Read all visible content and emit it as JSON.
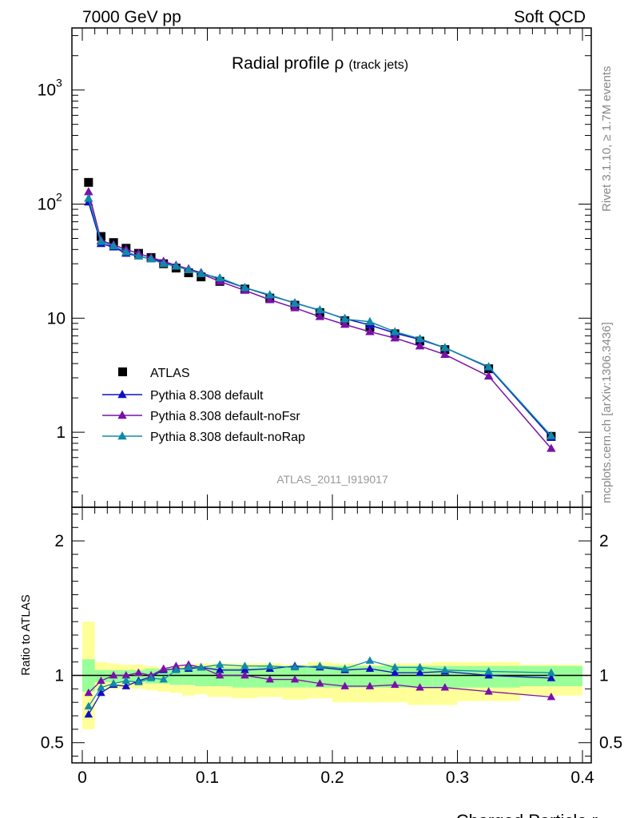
{
  "header": {
    "left": "7000 GeV pp",
    "right": "Soft QCD"
  },
  "side_labels": {
    "rivet": "Rivet 3.1.10, ≥ 1.7M events",
    "mcplots": "mcplots.cern.ch [arXiv:1306.3436]"
  },
  "title": {
    "main": "Radial profile ρ",
    "sub": "(track jets)"
  },
  "analysis_id": "ATLAS_2011_I919017",
  "colors": {
    "atlas": "#000000",
    "default": "#1010c0",
    "noFsr": "#7a10a8",
    "noRap": "#108aa8",
    "band_outer": "#ffff99",
    "band_inner": "#99ff99"
  },
  "chart_data": [
    {
      "type": "line",
      "panel": "main",
      "yscale": "log",
      "xlim": [
        0,
        0.4
      ],
      "ylim": [
        0.22,
        3500
      ],
      "y_ticks": [
        {
          "value": 1,
          "label": "1"
        },
        {
          "value": 10,
          "label": "10"
        },
        {
          "value": 100,
          "label": "10",
          "exp": "2"
        },
        {
          "value": 1000,
          "label": "10",
          "exp": "3"
        }
      ],
      "x": [
        0.005,
        0.015,
        0.025,
        0.035,
        0.045,
        0.055,
        0.065,
        0.075,
        0.085,
        0.095,
        0.11,
        0.13,
        0.15,
        0.17,
        0.19,
        0.21,
        0.23,
        0.25,
        0.27,
        0.29,
        0.325,
        0.375
      ],
      "series": [
        {
          "name": "ATLAS",
          "marker": "square",
          "values": [
            155,
            52,
            46,
            41,
            37,
            34,
            30,
            27.5,
            25,
            23,
            21,
            18,
            15,
            13,
            11.2,
            9.5,
            8.3,
            7.3,
            6.3,
            5.3,
            3.6,
            0.92
          ]
        },
        {
          "name": "Pythia 8.308 default",
          "marker": "triangle",
          "values": [
            104,
            45,
            42,
            37,
            35,
            33,
            31,
            29,
            27,
            25,
            22,
            18.5,
            15.8,
            13.6,
            11.7,
            9.9,
            8.7,
            7.4,
            6.5,
            5.5,
            3.7,
            0.9
          ]
        },
        {
          "name": "Pythia 8.308 default-noFsr",
          "marker": "triangle",
          "values": [
            128,
            48,
            44,
            40,
            37,
            34,
            31.5,
            29,
            27,
            24.5,
            21,
            17.5,
            14.5,
            12.3,
            10.3,
            8.8,
            7.6,
            6.7,
            5.7,
            4.8,
            3.1,
            0.72
          ]
        },
        {
          "name": "Pythia 8.308 default-noRap",
          "marker": "triangle",
          "values": [
            112,
            47,
            43,
            38,
            35,
            33,
            30,
            28.5,
            26.5,
            24.5,
            22.5,
            18.5,
            16,
            13.5,
            11.8,
            9.8,
            9.3,
            7.6,
            6.6,
            5.5,
            3.75,
            0.93
          ]
        }
      ],
      "legend": [
        "ATLAS",
        "Pythia 8.308 default",
        "Pythia 8.308 default-noFsr",
        "Pythia 8.308 default-noRap"
      ]
    },
    {
      "type": "line",
      "panel": "ratio",
      "ylabel": "Ratio to ATLAS",
      "xlabel": "Charged Particle r",
      "xlim": [
        0,
        0.4
      ],
      "ylim": [
        0.35,
        2.25
      ],
      "y_ticks": [
        {
          "value": 0.5,
          "label": "0.5"
        },
        {
          "value": 1,
          "label": "1"
        },
        {
          "value": 2,
          "label": "2"
        }
      ],
      "x_ticks": [
        {
          "value": 0,
          "label": "0"
        },
        {
          "value": 0.1,
          "label": "0.1"
        },
        {
          "value": 0.2,
          "label": "0.2"
        },
        {
          "value": 0.3,
          "label": "0.3"
        },
        {
          "value": 0.4,
          "label": "0.4"
        }
      ],
      "x": [
        0.005,
        0.015,
        0.025,
        0.035,
        0.045,
        0.055,
        0.065,
        0.075,
        0.085,
        0.095,
        0.11,
        0.13,
        0.15,
        0.17,
        0.19,
        0.21,
        0.23,
        0.25,
        0.27,
        0.29,
        0.325,
        0.375
      ],
      "bands": {
        "edges": [
          0,
          0.01,
          0.02,
          0.03,
          0.04,
          0.05,
          0.06,
          0.07,
          0.08,
          0.09,
          0.1,
          0.12,
          0.14,
          0.16,
          0.18,
          0.2,
          0.22,
          0.24,
          0.26,
          0.28,
          0.3,
          0.35,
          0.4
        ],
        "outer_lo": [
          0.6,
          0.89,
          0.9,
          0.9,
          0.9,
          0.89,
          0.88,
          0.87,
          0.85,
          0.86,
          0.84,
          0.83,
          0.84,
          0.82,
          0.83,
          0.8,
          0.8,
          0.8,
          0.78,
          0.78,
          0.81,
          0.85
        ],
        "outer_hi": [
          1.4,
          1.1,
          1.09,
          1.08,
          1.08,
          1.07,
          1.06,
          1.07,
          1.08,
          1.09,
          1.09,
          1.09,
          1.09,
          1.08,
          1.1,
          1.09,
          1.08,
          1.09,
          1.09,
          1.1,
          1.1,
          1.08
        ],
        "inner_lo": [
          0.88,
          0.95,
          0.95,
          0.95,
          0.95,
          0.94,
          0.94,
          0.93,
          0.93,
          0.92,
          0.92,
          0.91,
          0.91,
          0.91,
          0.91,
          0.91,
          0.91,
          0.91,
          0.91,
          0.91,
          0.91,
          0.92
        ],
        "inner_hi": [
          1.12,
          1.04,
          1.04,
          1.04,
          1.04,
          1.05,
          1.05,
          1.05,
          1.05,
          1.06,
          1.06,
          1.06,
          1.07,
          1.07,
          1.07,
          1.07,
          1.07,
          1.07,
          1.07,
          1.07,
          1.07,
          1.07
        ]
      },
      "series": [
        {
          "name": "Pythia 8.308 default",
          "values": [
            0.71,
            0.87,
            0.93,
            0.92,
            0.96,
            0.99,
            1.04,
            1.05,
            1.05,
            1.06,
            1.04,
            1.04,
            1.05,
            1.07,
            1.06,
            1.04,
            1.05,
            1.02,
            1.02,
            1.03,
            1.0,
            0.98
          ]
        },
        {
          "name": "Pythia 8.308 default-noFsr",
          "values": [
            0.87,
            0.96,
            1.0,
            1.0,
            1.02,
            1.0,
            1.05,
            1.07,
            1.08,
            1.06,
            1.0,
            1.0,
            0.97,
            0.97,
            0.94,
            0.92,
            0.92,
            0.93,
            0.91,
            0.91,
            0.88,
            0.84
          ]
        },
        {
          "name": "Pythia 8.308 default-noRap",
          "values": [
            0.77,
            0.91,
            0.94,
            0.96,
            0.95,
            0.98,
            0.97,
            1.04,
            1.06,
            1.06,
            1.08,
            1.07,
            1.07,
            1.06,
            1.07,
            1.05,
            1.11,
            1.06,
            1.06,
            1.04,
            1.03,
            1.02
          ]
        }
      ]
    }
  ]
}
